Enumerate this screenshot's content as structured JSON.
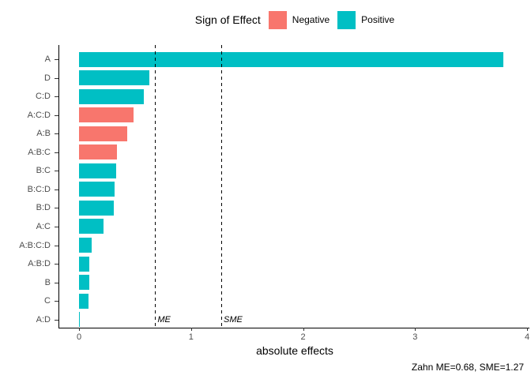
{
  "legend": {
    "title": "Sign of Effect",
    "items": [
      {
        "label": "Negative",
        "color": "#F8766D"
      },
      {
        "label": "Positive",
        "color": "#00BFC4"
      }
    ]
  },
  "caption": "Zahn ME=0.68, SME=1.27",
  "chart_data": {
    "type": "bar",
    "orientation": "horizontal",
    "title": "",
    "xlabel": "absolute effects",
    "ylabel": "",
    "grid": false,
    "legend_position": "top",
    "xlim": [
      0,
      4
    ],
    "x_ticks": [
      0,
      1,
      2,
      3,
      4
    ],
    "categories": [
      "A",
      "D",
      "C:D",
      "A:C:D",
      "A:B",
      "A:B:C",
      "B:C",
      "B:C:D",
      "B:D",
      "A:C",
      "A:B:C:D",
      "A:B:D",
      "B",
      "C",
      "A:D"
    ],
    "values": [
      3.79,
      0.63,
      0.58,
      0.49,
      0.43,
      0.34,
      0.33,
      0.32,
      0.31,
      0.22,
      0.11,
      0.09,
      0.09,
      0.085,
      0.01
    ],
    "signs": [
      "Positive",
      "Positive",
      "Positive",
      "Negative",
      "Negative",
      "Negative",
      "Positive",
      "Positive",
      "Positive",
      "Positive",
      "Positive",
      "Positive",
      "Positive",
      "Positive",
      "Positive"
    ],
    "colors": {
      "Negative": "#F8766D",
      "Positive": "#00BFC4"
    },
    "reference_lines": [
      {
        "label": "ME",
        "value": 0.68
      },
      {
        "label": "SME",
        "value": 1.27
      }
    ]
  }
}
